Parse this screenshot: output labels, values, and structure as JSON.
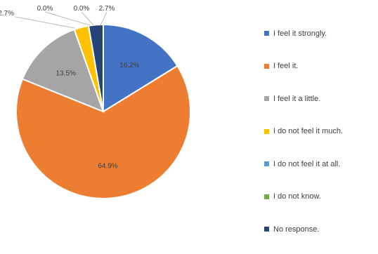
{
  "chart_data": {
    "type": "pie",
    "title": "",
    "slices": [
      {
        "label": "I feel it strongly.",
        "value": 16.2,
        "value_label": "16.2%",
        "color": "#4472C4"
      },
      {
        "label": "I feel it.",
        "value": 64.9,
        "value_label": "64.9%",
        "color": "#ED7D31"
      },
      {
        "label": "I feel it a little.",
        "value": 13.5,
        "value_label": "13.5%",
        "color": "#A5A5A5"
      },
      {
        "label": "I do not feel it much.",
        "value": 2.7,
        "value_label": "2.7%",
        "color": "#FFC000"
      },
      {
        "label": "I do not feel it at all.",
        "value": 0.0,
        "value_label": "0.0%",
        "color": "#5B9BD5"
      },
      {
        "label": "I do not know.",
        "value": 0.0,
        "value_label": "0.0%",
        "color": "#70AD47"
      },
      {
        "label": "No response.",
        "value": 2.7,
        "value_label": "2.7%",
        "color": "#264478"
      }
    ],
    "legend_position": "right"
  }
}
